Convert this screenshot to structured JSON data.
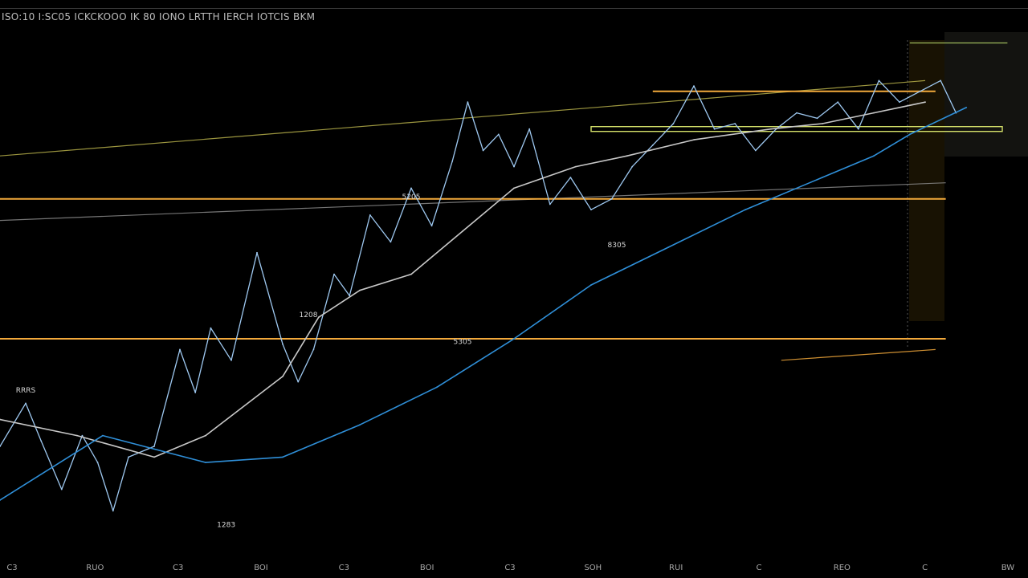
{
  "chart_data": {
    "type": "line",
    "title": "ISO:10 I:SC05 ICKCKOOO IK 80 IONO LRTTH IERCH IOTCIS BKM",
    "xlabel": "",
    "ylabel": "",
    "x_tick_labels": [
      "C3",
      "RUO",
      "C3",
      "BOI",
      "C3",
      "BOI",
      "C3",
      "SOH",
      "RUI",
      "C",
      "REO",
      "C",
      "BW"
    ],
    "ylim": [
      0,
      100
    ],
    "xlim": [
      0,
      200
    ],
    "grid": false,
    "legend": "none",
    "series": [
      {
        "role": "price",
        "color": "#9ec8f0",
        "x": [
          0,
          5,
          8,
          12,
          16,
          19,
          22,
          25,
          30,
          35,
          38,
          41,
          45,
          50,
          55,
          58,
          61,
          65,
          68,
          72,
          76,
          80,
          84,
          88,
          91,
          94,
          97,
          100,
          103,
          107,
          111,
          115,
          119,
          123,
          127,
          131,
          135,
          139,
          143,
          147,
          151,
          155,
          159,
          163,
          167,
          171,
          175,
          179,
          183,
          186
        ],
        "values": [
          20,
          28,
          21,
          12,
          22,
          17,
          8,
          18,
          20,
          38,
          30,
          42,
          36,
          56,
          39,
          32,
          38,
          52,
          48,
          63,
          58,
          68,
          61,
          73,
          84,
          75,
          78,
          72,
          79,
          65,
          70,
          64,
          66,
          72,
          76,
          80,
          87,
          79,
          80,
          75,
          79,
          82,
          81,
          84,
          79,
          88,
          84,
          86,
          88,
          82
        ]
      },
      {
        "role": "moving-average-fast",
        "color": "#c8c8c8",
        "x": [
          0,
          15,
          30,
          40,
          55,
          62,
          70,
          80,
          90,
          100,
          112,
          122,
          135,
          150,
          160,
          170,
          180
        ],
        "values": [
          25,
          22,
          18,
          22,
          33,
          44,
          49,
          52,
          60,
          68,
          72,
          74,
          77,
          79,
          80,
          82,
          84
        ]
      },
      {
        "role": "moving-average-slow",
        "color": "#2f8fd8",
        "x": [
          0,
          20,
          40,
          55,
          70,
          85,
          100,
          115,
          130,
          145,
          160,
          170,
          177,
          188
        ],
        "values": [
          10,
          22,
          17,
          18,
          24,
          31,
          40,
          50,
          57,
          64,
          70,
          74,
          78,
          83
        ]
      }
    ],
    "annotations": [
      {
        "text": "RRRS",
        "x": 5,
        "y": 30
      },
      {
        "text": "1208",
        "x": 60,
        "y": 44
      },
      {
        "text": "5205",
        "x": 80,
        "y": 66
      },
      {
        "text": "5305",
        "x": 90,
        "y": 39
      },
      {
        "text": "8305",
        "x": 120,
        "y": 57
      },
      {
        "text": "1283",
        "x": 44,
        "y": 5
      }
    ],
    "levels": [
      {
        "role": "support",
        "color": "#f2a93b",
        "x0": 0,
        "x1": 184,
        "value": 40
      },
      {
        "role": "resistance",
        "color": "#f2a93b",
        "x0": 0,
        "x1": 184,
        "value": 66
      },
      {
        "role": "resistance",
        "color": "#f2a93b",
        "x0": 127,
        "x1": 182,
        "value": 86
      },
      {
        "role": "channel",
        "color": "#d4e06a",
        "x0": 115,
        "x1": 195,
        "value": 79
      }
    ],
    "trendlines": [
      {
        "color": "#b7b04a",
        "x0": 0,
        "x1": 180,
        "y0": 74,
        "y1": 88
      },
      {
        "color": "#8a8a8a",
        "x0": 0,
        "x1": 184,
        "y0": 62,
        "y1": 69
      },
      {
        "color": "#f2a93b",
        "x0": 152,
        "x1": 182,
        "y0": 36,
        "y1": 38
      },
      {
        "color": "#b7d86a",
        "x0": 177,
        "x1": 196,
        "y0": 95,
        "y1": 95
      }
    ]
  }
}
